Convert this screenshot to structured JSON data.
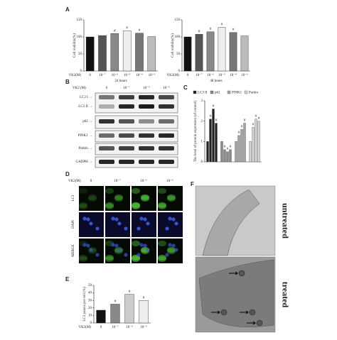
{
  "panel_labels": [
    "A",
    "B",
    "C",
    "D",
    "E",
    "F"
  ],
  "chart_data": [
    {
      "type": "bar",
      "y_label": "Cell viability(%)",
      "x_label": "24 hours",
      "treatment_label": "VK2(M)",
      "categories": [
        "0",
        "10⁻⁷",
        "10⁻⁶",
        "10⁻⁵",
        "10⁻⁴",
        "10⁻³"
      ],
      "values": [
        100,
        104,
        110,
        118,
        111,
        101
      ],
      "significance": [
        null,
        null,
        "#",
        "#",
        "#",
        null
      ],
      "colors": [
        "#111111",
        "#555555",
        "#888888",
        "#eeeeee",
        "#777777",
        "#bbbbbb"
      ],
      "ylim": [
        0,
        150
      ],
      "yticks": [
        0,
        50,
        100,
        150
      ]
    },
    {
      "type": "bar",
      "y_label": "Cell viability(%)",
      "x_label": "48 hours",
      "treatment_label": "VK2(M)",
      "categories": [
        "0",
        "10⁻⁷",
        "10⁻⁶",
        "10⁻⁵",
        "10⁻⁴",
        "10⁻³"
      ],
      "values": [
        100,
        108,
        115,
        128,
        113,
        103
      ],
      "significance": [
        null,
        "#",
        "#",
        "#",
        "#",
        null
      ],
      "colors": [
        "#111111",
        "#555555",
        "#888888",
        "#eeeeee",
        "#777777",
        "#bbbbbb"
      ],
      "ylim": [
        0,
        150
      ],
      "yticks": [
        0,
        50,
        100,
        150
      ]
    },
    {
      "type": "grouped-bar",
      "y_label": "The level of protein expression (of control)",
      "series": [
        {
          "name": "LC3 II",
          "color": "#222222",
          "values": [
            1.0,
            2.1,
            2.6,
            1.9
          ],
          "significance": [
            null,
            "#",
            "#",
            "#"
          ]
        },
        {
          "name": "p62",
          "color": "#8a8a8a",
          "values": [
            1.0,
            0.6,
            0.5,
            0.6
          ],
          "significance": [
            null,
            "#",
            "#",
            "#"
          ]
        },
        {
          "name": "PINK1",
          "color": "#a6a6a6",
          "values": [
            1.0,
            1.3,
            1.6,
            1.9
          ],
          "significance": [
            null,
            "#",
            "#",
            "#"
          ]
        },
        {
          "name": "Parkin",
          "color": "#d4d4d4",
          "values": [
            1.0,
            1.7,
            2.1,
            2.0
          ],
          "significance": [
            null,
            "#",
            "#",
            "#"
          ]
        }
      ],
      "ylim": [
        0,
        3
      ],
      "yticks": [
        0,
        1,
        2,
        3
      ]
    },
    {
      "type": "bar",
      "y_label": "LC3 puncta per cell (%)",
      "treatment_label": "VK2(M)",
      "categories": [
        "0",
        "10⁻⁷",
        "10⁻⁶",
        "10⁻⁵"
      ],
      "values": [
        17,
        25,
        38,
        30
      ],
      "significance": [
        null,
        "#",
        "#",
        "#"
      ],
      "colors": [
        "#111111",
        "#888888",
        "#cccccc",
        "#eeeeee"
      ],
      "ylim": [
        0,
        50
      ],
      "yticks": [
        0,
        10,
        20,
        30,
        40,
        50
      ]
    }
  ],
  "blot": {
    "treatment_label": "VK2 (M)",
    "doses": [
      "0",
      "10⁻⁷",
      "10⁻⁶",
      "10⁻⁵"
    ],
    "bands": [
      "LC3 I →",
      "LC3 II →",
      "p62 →",
      "PINK1 →",
      "Parkin →",
      "GADPH →"
    ]
  },
  "microscopy": {
    "treatment_label": "VK2(M)",
    "doses": [
      "0",
      "10⁻⁷",
      "10⁻⁶",
      "10⁻⁵"
    ],
    "rows": [
      "LC3",
      "DAPI",
      "MERGE"
    ]
  },
  "em": {
    "labels": [
      "untreated",
      "treated"
    ]
  }
}
